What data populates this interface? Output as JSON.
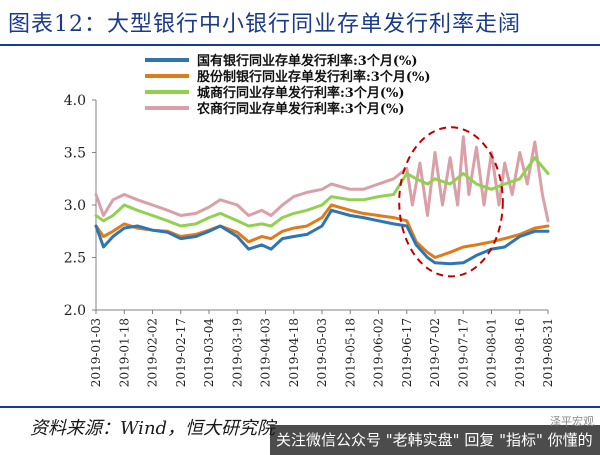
{
  "figure_title": "图表12：大型银行中小银行同业存单发行利率走阔",
  "source_text": "资料来源：Wind，恒大研究院",
  "watermark": {
    "text": "关注微信公众号 \"老韩实盘\" 回复 \"指标\" 你懂的",
    "brand": "泽平宏观"
  },
  "colors": {
    "title": "#1a3a8c",
    "state_owned": "#2e75b6",
    "joint_stock": "#e07b1a",
    "city_commercial": "#92d050",
    "rural_commercial": "#d9a0a8",
    "highlight_ellipse": "#c00000"
  },
  "chart_data": {
    "type": "line",
    "ylim": [
      2.0,
      4.0
    ],
    "yticks": [
      "2.0",
      "2.5",
      "3.0",
      "3.5",
      "4.0"
    ],
    "xticks": [
      "2019-01-03",
      "2019-01-18",
      "2019-02-02",
      "2019-02-17",
      "2019-03-04",
      "2019-03-19",
      "2019-04-03",
      "2019-04-18",
      "2019-05-03",
      "2019-05-18",
      "2019-06-02",
      "2019-06-17",
      "2019-07-02",
      "2019-07-17",
      "2019-08-01",
      "2019-08-16",
      "2019-08-31"
    ],
    "x_start": "2019-01-03",
    "x_end": "2019-08-31",
    "series": [
      {
        "name": "国有银行同业存单发行利率:3个月(%)",
        "color_key": "state_owned",
        "points": [
          [
            "2019-01-03",
            2.8
          ],
          [
            "2019-01-07",
            2.6
          ],
          [
            "2019-01-12",
            2.7
          ],
          [
            "2019-01-18",
            2.78
          ],
          [
            "2019-01-25",
            2.8
          ],
          [
            "2019-02-02",
            2.76
          ],
          [
            "2019-02-10",
            2.74
          ],
          [
            "2019-02-17",
            2.68
          ],
          [
            "2019-02-25",
            2.7
          ],
          [
            "2019-03-04",
            2.75
          ],
          [
            "2019-03-10",
            2.8
          ],
          [
            "2019-03-19",
            2.7
          ],
          [
            "2019-03-25",
            2.58
          ],
          [
            "2019-04-01",
            2.62
          ],
          [
            "2019-04-06",
            2.58
          ],
          [
            "2019-04-12",
            2.68
          ],
          [
            "2019-04-18",
            2.7
          ],
          [
            "2019-04-25",
            2.72
          ],
          [
            "2019-05-03",
            2.8
          ],
          [
            "2019-05-08",
            2.95
          ],
          [
            "2019-05-18",
            2.9
          ],
          [
            "2019-05-25",
            2.88
          ],
          [
            "2019-06-02",
            2.85
          ],
          [
            "2019-06-10",
            2.82
          ],
          [
            "2019-06-17",
            2.8
          ],
          [
            "2019-06-22",
            2.62
          ],
          [
            "2019-06-28",
            2.5
          ],
          [
            "2019-07-02",
            2.45
          ],
          [
            "2019-07-10",
            2.44
          ],
          [
            "2019-07-17",
            2.45
          ],
          [
            "2019-07-24",
            2.52
          ],
          [
            "2019-08-01",
            2.58
          ],
          [
            "2019-08-08",
            2.6
          ],
          [
            "2019-08-16",
            2.7
          ],
          [
            "2019-08-24",
            2.75
          ],
          [
            "2019-08-31",
            2.75
          ]
        ]
      },
      {
        "name": "股份制银行同业存单发行利率:3个月(%)",
        "color_key": "joint_stock",
        "points": [
          [
            "2019-01-03",
            2.8
          ],
          [
            "2019-01-07",
            2.7
          ],
          [
            "2019-01-12",
            2.75
          ],
          [
            "2019-01-18",
            2.82
          ],
          [
            "2019-01-25",
            2.78
          ],
          [
            "2019-02-02",
            2.76
          ],
          [
            "2019-02-10",
            2.75
          ],
          [
            "2019-02-17",
            2.7
          ],
          [
            "2019-02-25",
            2.72
          ],
          [
            "2019-03-04",
            2.76
          ],
          [
            "2019-03-10",
            2.8
          ],
          [
            "2019-03-19",
            2.74
          ],
          [
            "2019-03-25",
            2.65
          ],
          [
            "2019-04-01",
            2.7
          ],
          [
            "2019-04-06",
            2.68
          ],
          [
            "2019-04-12",
            2.75
          ],
          [
            "2019-04-18",
            2.78
          ],
          [
            "2019-04-25",
            2.8
          ],
          [
            "2019-05-03",
            2.88
          ],
          [
            "2019-05-08",
            3.0
          ],
          [
            "2019-05-18",
            2.95
          ],
          [
            "2019-05-25",
            2.92
          ],
          [
            "2019-06-02",
            2.9
          ],
          [
            "2019-06-10",
            2.88
          ],
          [
            "2019-06-17",
            2.85
          ],
          [
            "2019-06-22",
            2.65
          ],
          [
            "2019-06-28",
            2.55
          ],
          [
            "2019-07-02",
            2.5
          ],
          [
            "2019-07-10",
            2.55
          ],
          [
            "2019-07-17",
            2.6
          ],
          [
            "2019-07-24",
            2.62
          ],
          [
            "2019-08-01",
            2.65
          ],
          [
            "2019-08-08",
            2.68
          ],
          [
            "2019-08-16",
            2.72
          ],
          [
            "2019-08-24",
            2.78
          ],
          [
            "2019-08-31",
            2.8
          ]
        ]
      },
      {
        "name": "城商行同业存单发行利率:3个月(%)",
        "color_key": "city_commercial",
        "points": [
          [
            "2019-01-03",
            2.9
          ],
          [
            "2019-01-07",
            2.85
          ],
          [
            "2019-01-12",
            2.9
          ],
          [
            "2019-01-18",
            3.0
          ],
          [
            "2019-01-25",
            2.95
          ],
          [
            "2019-02-02",
            2.9
          ],
          [
            "2019-02-10",
            2.85
          ],
          [
            "2019-02-17",
            2.8
          ],
          [
            "2019-02-25",
            2.82
          ],
          [
            "2019-03-04",
            2.88
          ],
          [
            "2019-03-10",
            2.92
          ],
          [
            "2019-03-19",
            2.85
          ],
          [
            "2019-03-25",
            2.8
          ],
          [
            "2019-04-01",
            2.82
          ],
          [
            "2019-04-06",
            2.8
          ],
          [
            "2019-04-12",
            2.88
          ],
          [
            "2019-04-18",
            2.92
          ],
          [
            "2019-04-25",
            2.95
          ],
          [
            "2019-05-03",
            3.0
          ],
          [
            "2019-05-08",
            3.08
          ],
          [
            "2019-05-18",
            3.05
          ],
          [
            "2019-05-25",
            3.05
          ],
          [
            "2019-06-02",
            3.08
          ],
          [
            "2019-06-10",
            3.1
          ],
          [
            "2019-06-17",
            3.3
          ],
          [
            "2019-06-22",
            3.25
          ],
          [
            "2019-06-28",
            3.2
          ],
          [
            "2019-07-02",
            3.25
          ],
          [
            "2019-07-10",
            3.2
          ],
          [
            "2019-07-17",
            3.3
          ],
          [
            "2019-07-24",
            3.2
          ],
          [
            "2019-08-01",
            3.15
          ],
          [
            "2019-08-08",
            3.2
          ],
          [
            "2019-08-16",
            3.25
          ],
          [
            "2019-08-24",
            3.45
          ],
          [
            "2019-08-31",
            3.3
          ]
        ]
      },
      {
        "name": "农商行同业存单发行利率:3个月(%)",
        "color_key": "rural_commercial",
        "points": [
          [
            "2019-01-03",
            3.1
          ],
          [
            "2019-01-07",
            2.9
          ],
          [
            "2019-01-12",
            3.05
          ],
          [
            "2019-01-18",
            3.1
          ],
          [
            "2019-01-25",
            3.05
          ],
          [
            "2019-02-02",
            3.0
          ],
          [
            "2019-02-10",
            2.95
          ],
          [
            "2019-02-17",
            2.9
          ],
          [
            "2019-02-25",
            2.92
          ],
          [
            "2019-03-04",
            2.98
          ],
          [
            "2019-03-10",
            3.05
          ],
          [
            "2019-03-19",
            3.0
          ],
          [
            "2019-03-25",
            2.9
          ],
          [
            "2019-04-01",
            2.95
          ],
          [
            "2019-04-06",
            2.9
          ],
          [
            "2019-04-12",
            3.0
          ],
          [
            "2019-04-18",
            3.08
          ],
          [
            "2019-04-25",
            3.12
          ],
          [
            "2019-05-03",
            3.15
          ],
          [
            "2019-05-08",
            3.2
          ],
          [
            "2019-05-18",
            3.15
          ],
          [
            "2019-05-25",
            3.15
          ],
          [
            "2019-06-02",
            3.2
          ],
          [
            "2019-06-10",
            3.25
          ],
          [
            "2019-06-17",
            3.35
          ],
          [
            "2019-06-20",
            3.0
          ],
          [
            "2019-06-24",
            3.4
          ],
          [
            "2019-06-28",
            2.9
          ],
          [
            "2019-07-02",
            3.5
          ],
          [
            "2019-07-06",
            3.0
          ],
          [
            "2019-07-10",
            3.45
          ],
          [
            "2019-07-14",
            3.0
          ],
          [
            "2019-07-17",
            3.65
          ],
          [
            "2019-07-20",
            3.1
          ],
          [
            "2019-07-24",
            3.55
          ],
          [
            "2019-07-28",
            3.0
          ],
          [
            "2019-08-01",
            3.5
          ],
          [
            "2019-08-05",
            3.0
          ],
          [
            "2019-08-08",
            3.4
          ],
          [
            "2019-08-12",
            3.1
          ],
          [
            "2019-08-16",
            3.5
          ],
          [
            "2019-08-20",
            3.2
          ],
          [
            "2019-08-24",
            3.6
          ],
          [
            "2019-08-28",
            3.1
          ],
          [
            "2019-08-31",
            2.85
          ]
        ]
      }
    ],
    "highlight": {
      "shape": "dashed-ellipse",
      "start": "2019-06-13",
      "end": "2019-08-07",
      "y_low": 2.32,
      "y_high": 3.74
    }
  }
}
